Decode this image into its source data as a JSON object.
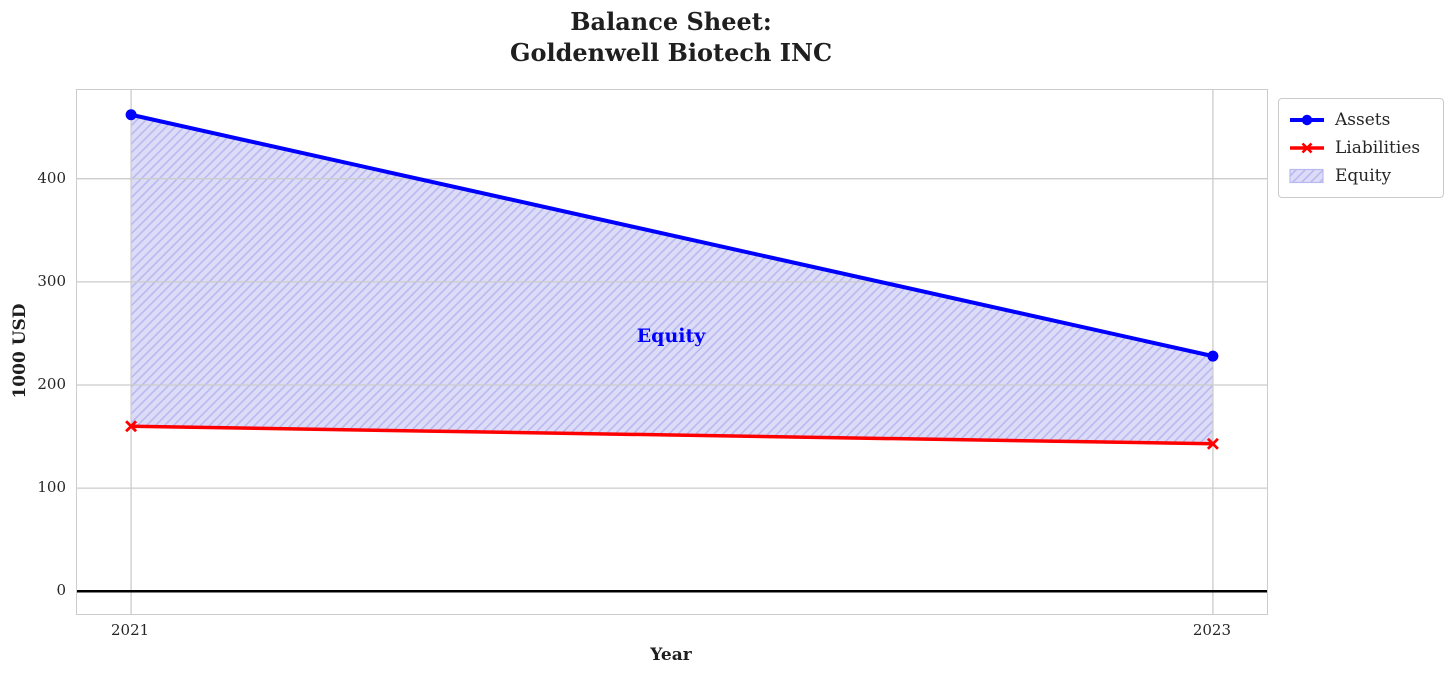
{
  "title": {
    "line1": "Balance Sheet:",
    "line2": "Goldenwell Biotech INC"
  },
  "chart_data": {
    "type": "line",
    "x": [
      2021,
      2023
    ],
    "xticks": [
      "2021",
      "2023"
    ],
    "yticks": [
      0,
      100,
      200,
      300,
      400
    ],
    "xlim": [
      2020.9,
      2023.1
    ],
    "ylim": [
      -22,
      486
    ],
    "grid": true,
    "xlabel": "Year",
    "ylabel": "1000 USD",
    "series": [
      {
        "name": "Assets",
        "values": [
          462,
          228
        ],
        "color": "#0000ff",
        "marker": "circle",
        "line_width": 4
      },
      {
        "name": "Liabilities",
        "values": [
          160,
          143
        ],
        "color": "#ff0000",
        "marker": "x",
        "line_width": 3.5
      }
    ],
    "fill_between": {
      "name": "Equity",
      "upper": "Assets",
      "lower": "Liabilities",
      "fill_color": "#dcdcf9",
      "hatch_color": "#b9b9ef",
      "hatch": "/"
    },
    "annotation": {
      "text": "Equity",
      "x": 2022,
      "y": 247,
      "color": "#0000ff"
    },
    "zero_line": {
      "y": 0,
      "color": "#000000",
      "width": 2.5
    },
    "legend": {
      "position": "outside-top-right",
      "items": [
        "Assets",
        "Liabilities",
        "Equity"
      ]
    },
    "colors": {
      "grid": "#cccccc",
      "axes_border": "#cccccc",
      "text": "#262626"
    }
  }
}
